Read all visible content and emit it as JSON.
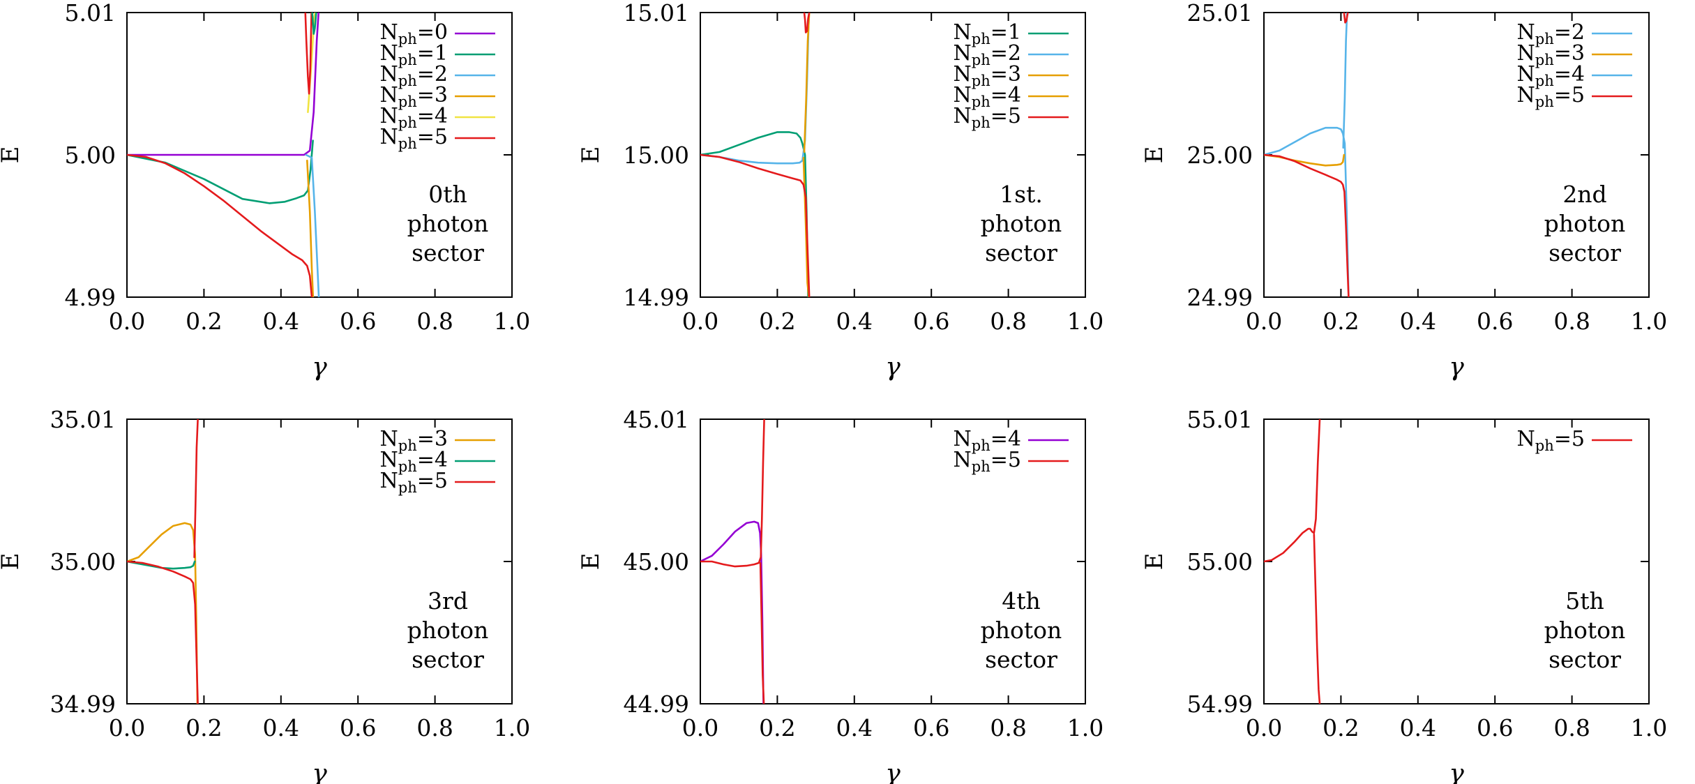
{
  "chart_data": [
    {
      "type": "line",
      "title": "",
      "xlabel": "γ",
      "ylabel": "E",
      "xlim": [
        0.0,
        1.0
      ],
      "ylim": [
        4.99,
        5.01
      ],
      "xticks": [
        "0.0",
        "0.2",
        "0.4",
        "0.6",
        "0.8",
        "1.0"
      ],
      "yticks": [
        "4.99",
        "5.00",
        "5.01"
      ],
      "annotation": [
        "0th",
        "photon",
        "sector"
      ],
      "legend_position": "top-right",
      "series": [
        {
          "name": "N",
          "sub": "ph",
          "suffix": "=0",
          "color": "#9400d3",
          "x": [
            0,
            0.1,
            0.2,
            0.3,
            0.4,
            0.46,
            0.475,
            0.485,
            0.493,
            0.5
          ],
          "y": [
            5.0,
            5.0,
            5.0,
            5.0,
            5.0,
            5.0,
            5.0003,
            5.003,
            5.008,
            5.011
          ]
        },
        {
          "name": "N",
          "sub": "ph",
          "suffix": "=1",
          "color": "#009e73",
          "x": [
            0,
            0.1,
            0.2,
            0.3,
            0.37,
            0.41,
            0.44,
            0.46,
            0.47,
            0.477,
            0.483
          ],
          "y": [
            5.0,
            4.99945,
            4.9983,
            4.9969,
            4.9966,
            4.9967,
            4.99695,
            4.99715,
            4.9975,
            4.999,
            5.001
          ]
        },
        {
          "name": "N",
          "sub": "ph",
          "suffix": "=2",
          "color": "#56b4e9",
          "x": [
            0.465,
            0.48,
            0.488,
            0.495,
            0.5
          ],
          "y": [
            5.0,
            4.9998,
            4.996,
            4.992,
            4.989
          ]
        },
        {
          "name": "N",
          "sub": "ph",
          "suffix": "=3",
          "color": "#e69f00",
          "x": [
            0.468,
            0.475,
            0.48,
            0.485
          ],
          "y": [
            4.9996,
            4.996,
            4.992,
            4.989
          ]
        },
        {
          "name": "N",
          "sub": "ph",
          "suffix": "=4",
          "color": "#f0e442",
          "x": [
            0.47,
            0.478,
            0.486,
            0.494
          ],
          "y": [
            5.003,
            5.006,
            5.0095,
            5.011
          ]
        },
        {
          "name": "N",
          "sub": "ph",
          "suffix": "=5",
          "color": "#e41a1c",
          "x": [
            0,
            0.05,
            0.1,
            0.15,
            0.2,
            0.25,
            0.3,
            0.35,
            0.4,
            0.43,
            0.455,
            0.468,
            0.475,
            0.48,
            0.485
          ],
          "y": [
            5.0,
            4.99985,
            4.9994,
            4.9987,
            4.9978,
            4.9968,
            4.9957,
            4.9946,
            4.9936,
            4.993,
            4.9926,
            4.9922,
            4.9915,
            4.99,
            4.989
          ]
        },
        {
          "name": "",
          "sub": "",
          "suffix": "",
          "color": "#e41a1c",
          "x": [
            0.462,
            0.466,
            0.47,
            0.473,
            0.476,
            0.48
          ],
          "y": [
            5.011,
            5.008,
            5.0055,
            5.0043,
            5.006,
            5.011
          ]
        },
        {
          "name": "",
          "sub": "",
          "suffix": "",
          "color": "#009e73",
          "x": [
            0.478,
            0.482,
            0.485,
            0.488,
            0.491,
            0.494
          ],
          "y": [
            5.011,
            5.0097,
            5.0085,
            5.0089,
            5.0098,
            5.011
          ]
        }
      ]
    },
    {
      "type": "line",
      "title": "",
      "xlabel": "γ",
      "ylabel": "E",
      "xlim": [
        0.0,
        1.0
      ],
      "ylim": [
        14.99,
        15.01
      ],
      "xticks": [
        "0.0",
        "0.2",
        "0.4",
        "0.6",
        "0.8",
        "1.0"
      ],
      "yticks": [
        "14.99",
        "15.00",
        "15.01"
      ],
      "annotation": [
        "1st.",
        "photon",
        "sector"
      ],
      "legend_position": "top-right",
      "series": [
        {
          "name": "N",
          "sub": "ph",
          "suffix": "=1",
          "color": "#009e73",
          "x": [
            0,
            0.05,
            0.1,
            0.15,
            0.2,
            0.23,
            0.25,
            0.26,
            0.265,
            0.272,
            0.276,
            0.28
          ],
          "y": [
            15.0,
            15.0002,
            15.0007,
            15.0012,
            15.0016,
            15.0016,
            15.0015,
            15.0012,
            15.0008,
            15.0,
            14.996,
            14.99
          ]
        },
        {
          "name": "N",
          "sub": "ph",
          "suffix": "=2",
          "color": "#56b4e9",
          "x": [
            0,
            0.05,
            0.1,
            0.15,
            0.2,
            0.24,
            0.258,
            0.265,
            0.272,
            0.277,
            0.282
          ],
          "y": [
            15.0,
            14.99985,
            14.9996,
            14.99945,
            14.9994,
            14.9994,
            14.99945,
            14.9996,
            15.001,
            15.005,
            15.01
          ]
        },
        {
          "name": "N",
          "sub": "ph",
          "suffix": "=3",
          "color": "#e69f00",
          "x": [
            0.268,
            0.274,
            0.278,
            0.282
          ],
          "y": [
            14.9998,
            14.995,
            14.991,
            14.99
          ]
        },
        {
          "name": "N",
          "sub": "ph",
          "suffix": "=4",
          "color": "#e69f00",
          "x": [
            0.27,
            0.275,
            0.279,
            0.283
          ],
          "y": [
            15.0002,
            15.004,
            15.008,
            15.01
          ]
        },
        {
          "name": "N",
          "sub": "ph",
          "suffix": "=5",
          "color": "#e41a1c",
          "x": [
            0,
            0.05,
            0.1,
            0.15,
            0.2,
            0.24,
            0.26,
            0.268,
            0.274,
            0.279,
            0.283
          ],
          "y": [
            15.0,
            14.99985,
            14.9995,
            14.99905,
            14.99865,
            14.99835,
            14.9982,
            14.9979,
            14.997,
            14.993,
            14.99
          ]
        },
        {
          "name": "",
          "sub": "",
          "suffix": "",
          "color": "#e41a1c",
          "x": [
            0.27,
            0.272,
            0.274,
            0.277,
            0.28,
            0.283
          ],
          "y": [
            15.01,
            15.0095,
            15.0086,
            15.0087,
            15.0096,
            15.01
          ]
        }
      ]
    },
    {
      "type": "line",
      "title": "",
      "xlabel": "γ",
      "ylabel": "E",
      "xlim": [
        0.0,
        1.0
      ],
      "ylim": [
        24.99,
        25.01
      ],
      "xticks": [
        "0.0",
        "0.2",
        "0.4",
        "0.6",
        "0.8",
        "1.0"
      ],
      "yticks": [
        "24.99",
        "25.00",
        "25.01"
      ],
      "annotation": [
        "2nd",
        "photon",
        "sector"
      ],
      "legend_position": "top-right",
      "series": [
        {
          "name": "N",
          "sub": "ph",
          "suffix": "=2",
          "color": "#56b4e9",
          "x": [
            0,
            0.04,
            0.08,
            0.12,
            0.16,
            0.19,
            0.2,
            0.205,
            0.21,
            0.215,
            0.22
          ],
          "y": [
            25.0,
            25.0003,
            25.0009,
            25.0015,
            25.0019,
            25.0019,
            25.0018,
            25.0015,
            25.0008,
            24.996,
            24.99
          ]
        },
        {
          "name": "N",
          "sub": "ph",
          "suffix": "=3",
          "color": "#e69f00",
          "x": [
            0,
            0.04,
            0.08,
            0.12,
            0.16,
            0.19,
            0.2,
            0.205,
            0.208
          ],
          "y": [
            25.0,
            24.99985,
            24.9996,
            24.9994,
            24.99925,
            24.9993,
            24.99935,
            24.9995,
            25.0
          ]
        },
        {
          "name": "N",
          "sub": "ph",
          "suffix": "=4",
          "color": "#56b4e9",
          "x": [
            0.206,
            0.21,
            0.213,
            0.216
          ],
          "y": [
            25.0005,
            25.004,
            25.008,
            25.01
          ]
        },
        {
          "name": "N",
          "sub": "ph",
          "suffix": "=5",
          "color": "#e41a1c",
          "x": [
            0,
            0.04,
            0.08,
            0.12,
            0.16,
            0.19,
            0.2,
            0.205,
            0.209,
            0.213,
            0.217,
            0.22
          ],
          "y": [
            25.0,
            24.9999,
            24.99955,
            24.99905,
            24.9986,
            24.99825,
            24.9981,
            24.9979,
            24.9974,
            24.995,
            24.992,
            24.99
          ]
        },
        {
          "name": "",
          "sub": "",
          "suffix": "",
          "color": "#e41a1c",
          "x": [
            0.208,
            0.211,
            0.214,
            0.218
          ],
          "y": [
            25.01,
            25.0093,
            25.0094,
            25.01
          ]
        }
      ]
    },
    {
      "type": "line",
      "title": "",
      "xlabel": "γ",
      "ylabel": "E",
      "xlim": [
        0.0,
        1.0
      ],
      "ylim": [
        34.99,
        35.01
      ],
      "xticks": [
        "0.0",
        "0.2",
        "0.4",
        "0.6",
        "0.8",
        "1.0"
      ],
      "yticks": [
        "34.99",
        "35.00",
        "35.01"
      ],
      "annotation": [
        "3rd",
        "photon",
        "sector"
      ],
      "legend_position": "top-right",
      "series": [
        {
          "name": "N",
          "sub": "ph",
          "suffix": "=3",
          "color": "#e69f00",
          "x": [
            0,
            0.03,
            0.06,
            0.09,
            0.12,
            0.15,
            0.165,
            0.172,
            0.177,
            0.18,
            0.183
          ],
          "y": [
            35.0,
            35.0003,
            35.0011,
            35.0019,
            35.0025,
            35.0027,
            35.0026,
            35.0022,
            35.0005,
            34.996,
            34.99
          ]
        },
        {
          "name": "N",
          "sub": "ph",
          "suffix": "=4",
          "color": "#009e73",
          "x": [
            0,
            0.03,
            0.06,
            0.09,
            0.12,
            0.15,
            0.165,
            0.172,
            0.176
          ],
          "y": [
            35.0,
            34.99985,
            34.9997,
            34.99955,
            34.9995,
            34.99955,
            34.9996,
            34.9997,
            35.0
          ]
        },
        {
          "name": "N",
          "sub": "ph",
          "suffix": "=5",
          "color": "#e41a1c",
          "x": [
            0,
            0.04,
            0.08,
            0.12,
            0.15,
            0.165,
            0.172,
            0.177,
            0.181,
            0.184
          ],
          "y": [
            35.0,
            34.9999,
            34.99965,
            34.9993,
            34.99895,
            34.99875,
            34.9985,
            34.997,
            34.993,
            34.99
          ]
        },
        {
          "name": "",
          "sub": "",
          "suffix": "",
          "color": "#e41a1c",
          "x": [
            0.175,
            0.178,
            0.181,
            0.184
          ],
          "y": [
            35.0003,
            35.004,
            35.008,
            35.01
          ]
        }
      ]
    },
    {
      "type": "line",
      "title": "",
      "xlabel": "γ",
      "ylabel": "E",
      "xlim": [
        0.0,
        1.0
      ],
      "ylim": [
        44.99,
        45.01
      ],
      "xticks": [
        "0.0",
        "0.2",
        "0.4",
        "0.6",
        "0.8",
        "1.0"
      ],
      "yticks": [
        "44.99",
        "45.00",
        "45.01"
      ],
      "annotation": [
        "4th",
        "photon",
        "sector"
      ],
      "legend_position": "top-right",
      "series": [
        {
          "name": "N",
          "sub": "ph",
          "suffix": "=4",
          "color": "#9400d3",
          "x": [
            0,
            0.03,
            0.06,
            0.09,
            0.12,
            0.14,
            0.15,
            0.155,
            0.158,
            0.161,
            0.164
          ],
          "y": [
            45.0,
            45.0004,
            45.0012,
            45.0021,
            45.0027,
            45.0028,
            45.0027,
            45.002,
            45.0005,
            44.996,
            44.99
          ]
        },
        {
          "name": "N",
          "sub": "ph",
          "suffix": "=5",
          "color": "#e41a1c",
          "x": [
            0,
            0.03,
            0.06,
            0.09,
            0.12,
            0.14,
            0.152,
            0.157,
            0.16,
            0.163,
            0.166
          ],
          "y": [
            45.0,
            45.0,
            44.9998,
            44.99965,
            44.9997,
            44.9998,
            44.9999,
            45.0003,
            45.003,
            45.007,
            45.01
          ]
        },
        {
          "name": "",
          "sub": "",
          "suffix": "",
          "color": "#e41a1c",
          "x": [
            0.156,
            0.159,
            0.162,
            0.165
          ],
          "y": [
            44.9999,
            44.996,
            44.992,
            44.99
          ]
        }
      ]
    },
    {
      "type": "line",
      "title": "",
      "xlabel": "γ",
      "ylabel": "E",
      "xlim": [
        0.0,
        1.0
      ],
      "ylim": [
        54.99,
        55.01
      ],
      "xticks": [
        "0.0",
        "0.2",
        "0.4",
        "0.6",
        "0.8",
        "1.0"
      ],
      "yticks": [
        "54.99",
        "55.00",
        "55.01"
      ],
      "annotation": [
        "5th",
        "photon",
        "sector"
      ],
      "legend_position": "top-right",
      "series": [
        {
          "name": "N",
          "sub": "ph",
          "suffix": "=5",
          "color": "#e41a1c",
          "x": [
            0,
            0.02,
            0.05,
            0.08,
            0.1,
            0.115,
            0.12,
            0.125,
            0.13,
            0.135,
            0.14,
            0.145
          ],
          "y": [
            55.0,
            55.0001,
            55.0006,
            55.0014,
            55.002,
            55.0023,
            55.0023,
            55.0021,
            55.002,
            55.003,
            55.007,
            55.01
          ]
        },
        {
          "name": "",
          "sub": "",
          "suffix": "",
          "color": "#e41a1c",
          "x": [
            0.13,
            0.134,
            0.138,
            0.142,
            0.145
          ],
          "y": [
            55.0019,
            54.998,
            54.994,
            54.991,
            54.99
          ]
        }
      ]
    }
  ]
}
